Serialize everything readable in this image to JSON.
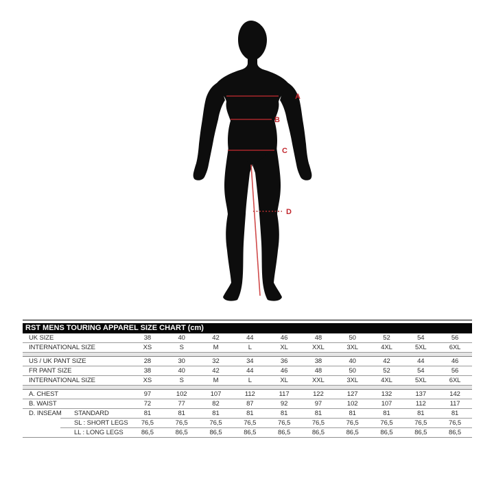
{
  "figure": {
    "subject": "mens body silhouette, back view, with measurement markers",
    "silhouette_color": "#0d0d0d",
    "marker_color": "#c1272d",
    "line_color": "#a8262b",
    "inseam_line_color": "#d04a4a",
    "markers": [
      {
        "label": "A",
        "meaning": "chest line"
      },
      {
        "label": "B",
        "meaning": "waist line"
      },
      {
        "label": "C",
        "meaning": "hip line"
      },
      {
        "label": "D",
        "meaning": "inseam marker"
      }
    ]
  },
  "chart_data": {
    "type": "table",
    "title": "RST MENS TOURING APPAREL SIZE CHART (cm)",
    "title_bg": "#000000",
    "title_text_color": "#ffffff",
    "spacer_color": "#e5e5e5",
    "sections": [
      {
        "rows": [
          {
            "label": "UK SIZE",
            "values": [
              "38",
              "40",
              "42",
              "44",
              "46",
              "48",
              "50",
              "52",
              "54",
              "56"
            ]
          },
          {
            "label": "INTERNATIONAL SIZE",
            "values": [
              "XS",
              "S",
              "M",
              "L",
              "XL",
              "XXL",
              "3XL",
              "4XL",
              "5XL",
              "6XL"
            ]
          }
        ]
      },
      {
        "rows": [
          {
            "label": "US / UK  PANT SIZE",
            "values": [
              "28",
              "30",
              "32",
              "34",
              "36",
              "38",
              "40",
              "42",
              "44",
              "46"
            ]
          },
          {
            "label": "FR PANT SIZE",
            "values": [
              "38",
              "40",
              "42",
              "44",
              "46",
              "48",
              "50",
              "52",
              "54",
              "56"
            ]
          },
          {
            "label": "INTERNATIONAL SIZE",
            "values": [
              "XS",
              "S",
              "M",
              "L",
              "XL",
              "XXL",
              "3XL",
              "4XL",
              "5XL",
              "6XL"
            ]
          }
        ]
      },
      {
        "rows": [
          {
            "label": "A. CHEST",
            "values": [
              "97",
              "102",
              "107",
              "112",
              "117",
              "122",
              "127",
              "132",
              "137",
              "142"
            ]
          },
          {
            "label": "B. WAIST",
            "values": [
              "72",
              "77",
              "82",
              "87",
              "92",
              "97",
              "102",
              "107",
              "112",
              "117"
            ]
          },
          {
            "label": "D. INSEAM",
            "sublabel": "STANDARD",
            "values": [
              "81",
              "81",
              "81",
              "81",
              "81",
              "81",
              "81",
              "81",
              "81",
              "81"
            ]
          },
          {
            "label": "",
            "sublabel": "SL : SHORT LEGS",
            "values": [
              "76,5",
              "76,5",
              "76,5",
              "76,5",
              "76,5",
              "76,5",
              "76,5",
              "76,5",
              "76,5",
              "76,5"
            ]
          },
          {
            "label": "",
            "sublabel": "LL : LONG LEGS",
            "values": [
              "86,5",
              "86,5",
              "86,5",
              "86,5",
              "86,5",
              "86,5",
              "86,5",
              "86,5",
              "86,5",
              "86,5"
            ]
          }
        ]
      }
    ]
  }
}
